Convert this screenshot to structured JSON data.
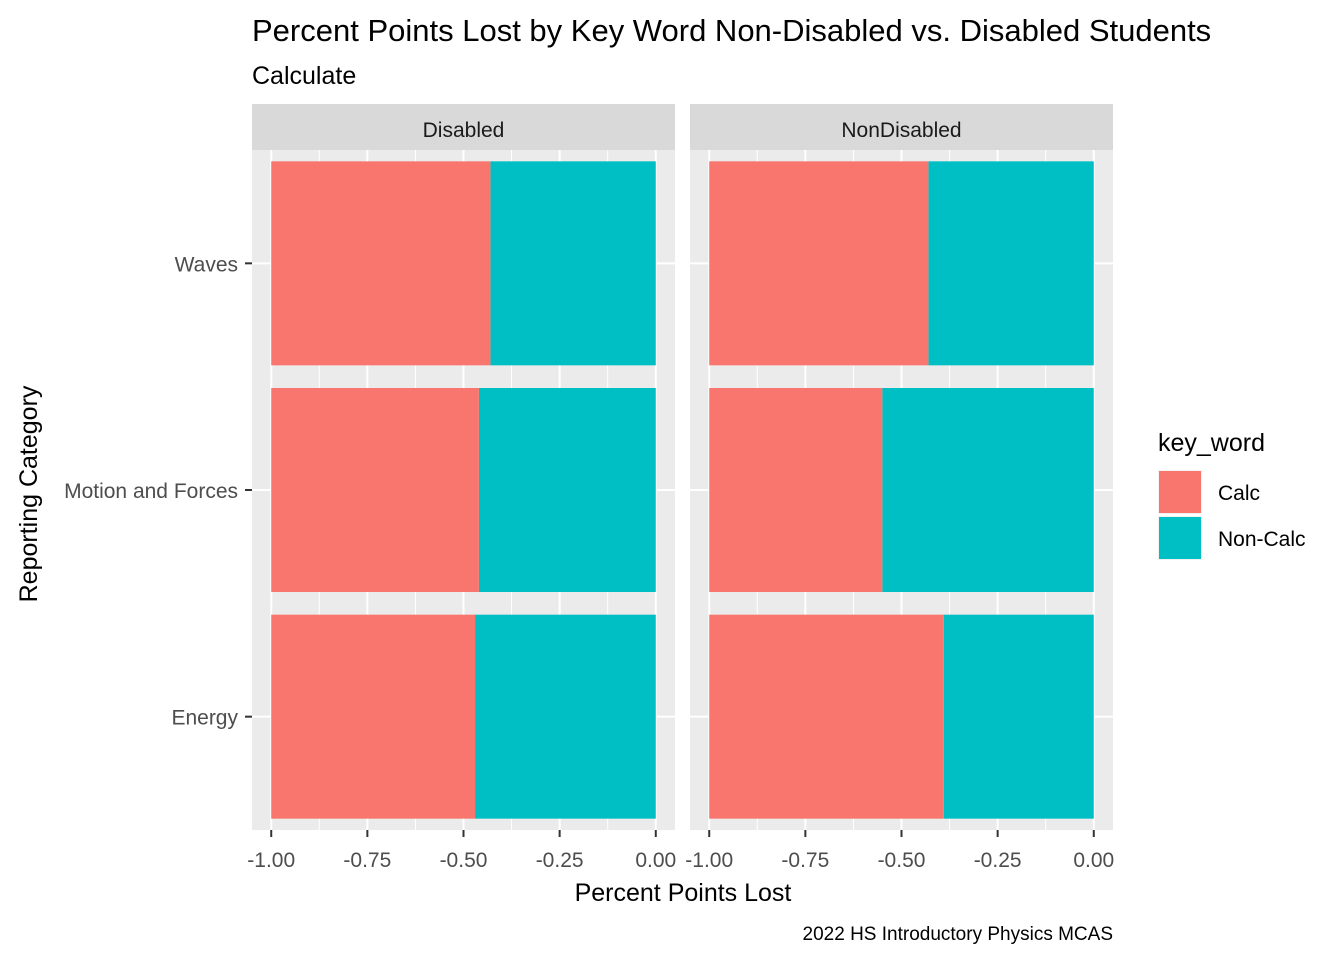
{
  "chart_data": {
    "type": "bar",
    "orientation": "horizontal",
    "stacked": true,
    "title": "Percent Points Lost by Key Word Non-Disabled vs. Disabled Students",
    "subtitle": "Calculate",
    "xlabel": "Percent Points Lost",
    "ylabel": "Reporting Category",
    "caption": "2022 HS Introductory Physics MCAS",
    "xlim": [
      -1.05,
      0.05
    ],
    "xticks": [
      -1.0,
      -0.75,
      -0.5,
      -0.25,
      0.0
    ],
    "xtick_labels": [
      "-1.00",
      "-0.75",
      "-0.50",
      "-0.25",
      "0.00"
    ],
    "categories": [
      "Waves",
      "Motion and Forces",
      "Energy"
    ],
    "grid": true,
    "legend": {
      "title": "key_word",
      "position": "right",
      "entries": [
        {
          "name": "Calc",
          "color": "#F8766D"
        },
        {
          "name": "Non-Calc",
          "color": "#00BFC4"
        }
      ]
    },
    "facets": [
      {
        "label": "Disabled",
        "series": [
          {
            "name": "Calc",
            "values": [
              -0.57,
              -0.54,
              -0.53
            ]
          },
          {
            "name": "Non-Calc",
            "values": [
              -0.43,
              -0.46,
              -0.47
            ]
          }
        ]
      },
      {
        "label": "NonDisabled",
        "series": [
          {
            "name": "Calc",
            "values": [
              -0.57,
              -0.45,
              -0.61
            ]
          },
          {
            "name": "Non-Calc",
            "values": [
              -0.43,
              -0.55,
              -0.39
            ]
          }
        ]
      }
    ]
  }
}
